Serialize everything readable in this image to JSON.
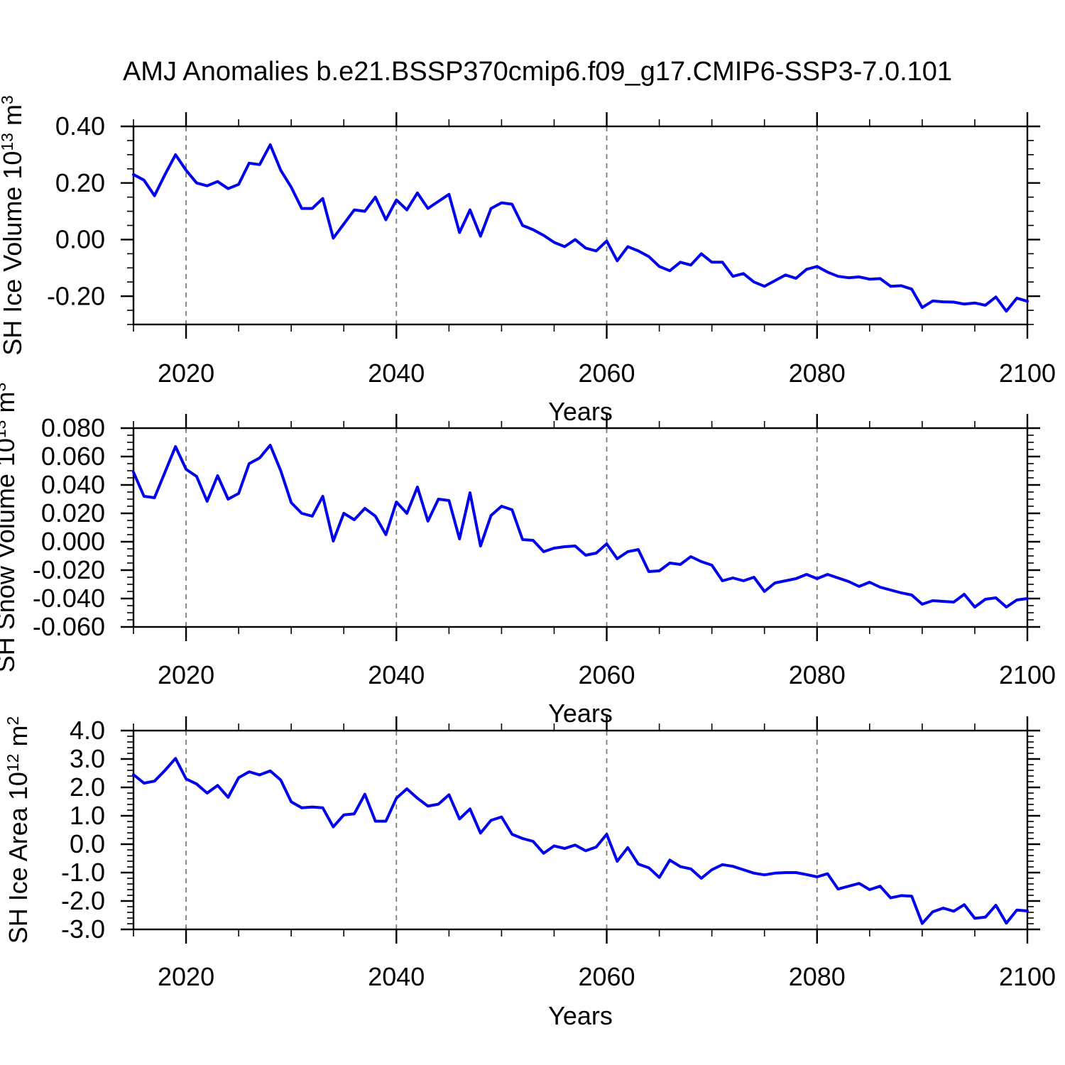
{
  "title": "AMJ Anomalies b.e21.BSSP370cmip6.f09_g17.CMIP6-SSP3-7.0.101",
  "line_color": "#0000ee",
  "grid_color": "#7d7d7d",
  "axis_color": "#000000",
  "chart_data": [
    {
      "type": "line",
      "name": "sh-ice-volume",
      "ylabel": "SH Ice Volume 10^13 m^3",
      "ylabel_segments": [
        {
          "t": "SH Ice Volume 10"
        },
        {
          "t": "13",
          "sup": true
        },
        {
          "t": " m"
        },
        {
          "t": "3",
          "sup": true
        }
      ],
      "xlabel": "Years",
      "x_start": 2015,
      "x_end": 2100,
      "x_step": 1,
      "x_major_ticks": [
        2020,
        2040,
        2060,
        2080,
        2100
      ],
      "x_minor_step": 5,
      "grid_x": [
        2020,
        2040,
        2060,
        2080
      ],
      "ylim": [
        -0.3,
        0.4
      ],
      "y_major_step": 0.2,
      "y_minor_step": 0.05,
      "y_decimals": 2,
      "y_tick_labels": [
        "0.40",
        "0.20",
        "0.00",
        "-0.20"
      ],
      "values": [
        0.23,
        0.21,
        0.155,
        0.23,
        0.3,
        0.245,
        0.2,
        0.19,
        0.205,
        0.18,
        0.195,
        0.27,
        0.265,
        0.335,
        0.245,
        0.185,
        0.11,
        0.11,
        0.145,
        0.005,
        0.055,
        0.105,
        0.1,
        0.15,
        0.07,
        0.14,
        0.105,
        0.165,
        0.11,
        0.135,
        0.16,
        0.025,
        0.105,
        0.012,
        0.11,
        0.13,
        0.125,
        0.05,
        0.035,
        0.015,
        -0.01,
        -0.025,
        0.0,
        -0.03,
        -0.04,
        -0.005,
        -0.075,
        -0.025,
        -0.04,
        -0.06,
        -0.095,
        -0.11,
        -0.08,
        -0.09,
        -0.05,
        -0.08,
        -0.08,
        -0.13,
        -0.12,
        -0.15,
        -0.165,
        -0.145,
        -0.125,
        -0.137,
        -0.105,
        -0.095,
        -0.115,
        -0.13,
        -0.135,
        -0.132,
        -0.14,
        -0.138,
        -0.165,
        -0.163,
        -0.175,
        -0.24,
        -0.217,
        -0.22,
        -0.221,
        -0.228,
        -0.224,
        -0.232,
        -0.203,
        -0.253,
        -0.207,
        -0.218
      ]
    },
    {
      "type": "line",
      "name": "sh-snow-volume",
      "ylabel": "SH Snow Volume 10^13 m^3",
      "ylabel_segments": [
        {
          "t": "SH Snow Volume 10"
        },
        {
          "t": "13",
          "sup": true
        },
        {
          "t": " m"
        },
        {
          "t": "3",
          "sup": true
        }
      ],
      "xlabel": "Years",
      "x_start": 2015,
      "x_end": 2100,
      "x_step": 1,
      "x_major_ticks": [
        2020,
        2040,
        2060,
        2080,
        2100
      ],
      "x_minor_step": 5,
      "grid_x": [
        2020,
        2040,
        2060,
        2080
      ],
      "ylim": [
        -0.06,
        0.08
      ],
      "y_major_step": 0.02,
      "y_minor_step": 0.005,
      "y_decimals": 3,
      "y_tick_labels": [
        "0.080",
        "0.060",
        "0.040",
        "0.020",
        "0.000",
        "-0.020",
        "-0.040",
        "-0.060"
      ],
      "values": [
        0.049,
        0.032,
        0.031,
        0.049,
        0.067,
        0.051,
        0.046,
        0.0285,
        0.0465,
        0.03,
        0.034,
        0.055,
        0.059,
        0.068,
        0.05,
        0.0275,
        0.02,
        0.018,
        0.032,
        0.0005,
        0.02,
        0.0155,
        0.0235,
        0.018,
        0.005,
        0.028,
        0.02,
        0.0385,
        0.0145,
        0.03,
        0.029,
        0.002,
        0.0345,
        -0.003,
        0.0185,
        0.025,
        0.0225,
        0.0015,
        0.001,
        -0.007,
        -0.0045,
        -0.0035,
        -0.003,
        -0.0095,
        -0.008,
        -0.0015,
        -0.012,
        -0.007,
        -0.0055,
        -0.021,
        -0.0205,
        -0.015,
        -0.016,
        -0.0105,
        -0.014,
        -0.0165,
        -0.0275,
        -0.0255,
        -0.0275,
        -0.025,
        -0.035,
        -0.029,
        -0.0275,
        -0.026,
        -0.023,
        -0.026,
        -0.023,
        -0.0255,
        -0.028,
        -0.0315,
        -0.0285,
        -0.032,
        -0.034,
        -0.036,
        -0.0375,
        -0.044,
        -0.0415,
        -0.042,
        -0.0425,
        -0.037,
        -0.046,
        -0.0405,
        -0.0395,
        -0.046,
        -0.041,
        -0.04
      ]
    },
    {
      "type": "line",
      "name": "sh-ice-area",
      "ylabel": "SH Ice Area 10^12 m^2",
      "ylabel_segments": [
        {
          "t": "SH Ice Area 10"
        },
        {
          "t": "12",
          "sup": true
        },
        {
          "t": " m"
        },
        {
          "t": "2",
          "sup": true
        }
      ],
      "xlabel": "Years",
      "x_start": 2015,
      "x_end": 2100,
      "x_step": 1,
      "x_major_ticks": [
        2020,
        2040,
        2060,
        2080,
        2100
      ],
      "x_minor_step": 5,
      "grid_x": [
        2020,
        2040,
        2060,
        2080
      ],
      "ylim": [
        -3.0,
        4.0
      ],
      "y_major_step": 1.0,
      "y_minor_step": 0.2,
      "y_decimals": 1,
      "y_tick_labels": [
        "4.0",
        "3.0",
        "2.0",
        "1.0",
        "0.0",
        "-1.0",
        "-2.0",
        "-3.0"
      ],
      "values": [
        2.45,
        2.15,
        2.22,
        2.6,
        3.02,
        2.3,
        2.12,
        1.8,
        2.07,
        1.65,
        2.34,
        2.55,
        2.44,
        2.58,
        2.26,
        1.49,
        1.28,
        1.31,
        1.28,
        0.61,
        1.03,
        1.07,
        1.76,
        0.81,
        0.81,
        1.62,
        1.95,
        1.62,
        1.34,
        1.41,
        1.74,
        0.89,
        1.24,
        0.39,
        0.84,
        0.96,
        0.35,
        0.2,
        0.1,
        -0.32,
        -0.06,
        -0.15,
        -0.03,
        -0.23,
        -0.1,
        0.35,
        -0.6,
        -0.12,
        -0.7,
        -0.83,
        -1.17,
        -0.56,
        -0.79,
        -0.87,
        -1.2,
        -0.9,
        -0.72,
        -0.78,
        -0.9,
        -1.02,
        -1.08,
        -1.02,
        -1.0,
        -1.0,
        -1.07,
        -1.15,
        -1.04,
        -1.58,
        -1.48,
        -1.38,
        -1.6,
        -1.48,
        -1.89,
        -1.81,
        -1.83,
        -2.79,
        -2.38,
        -2.25,
        -2.36,
        -2.13,
        -2.61,
        -2.57,
        -2.15,
        -2.78,
        -2.32,
        -2.35
      ]
    }
  ]
}
